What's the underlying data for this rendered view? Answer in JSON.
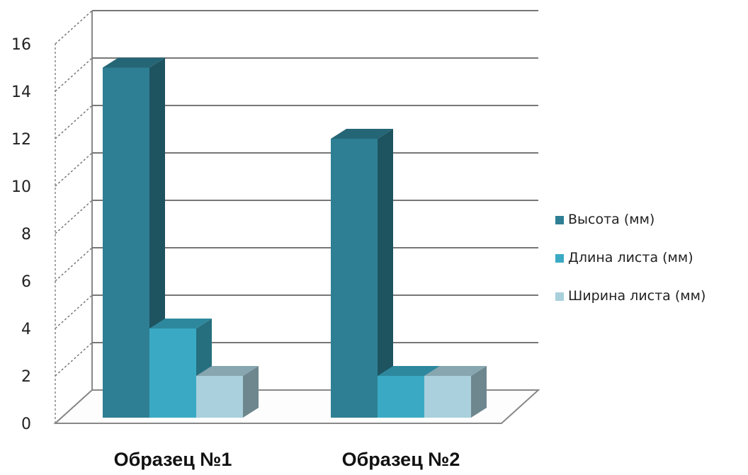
{
  "chart_data": {
    "type": "bar",
    "categories": [
      "Образец №1",
      "Образец №2"
    ],
    "series": [
      {
        "name": "Высота (мм)",
        "values": [
          15,
          12
        ],
        "color": "#2e7f93"
      },
      {
        "name": "Длина листа (мм)",
        "values": [
          4,
          2
        ],
        "color": "#3aaac4"
      },
      {
        "name": "Ширина листа (мм)",
        "values": [
          2,
          2
        ],
        "color": "#a9d0dc"
      }
    ],
    "yticks": [
      "0",
      "2",
      "4",
      "6",
      "8",
      "10",
      "12",
      "14",
      "16"
    ],
    "ylim": [
      0,
      16
    ],
    "grid": true,
    "legend_position": "right",
    "title": "",
    "xlabel": "",
    "ylabel": ""
  }
}
